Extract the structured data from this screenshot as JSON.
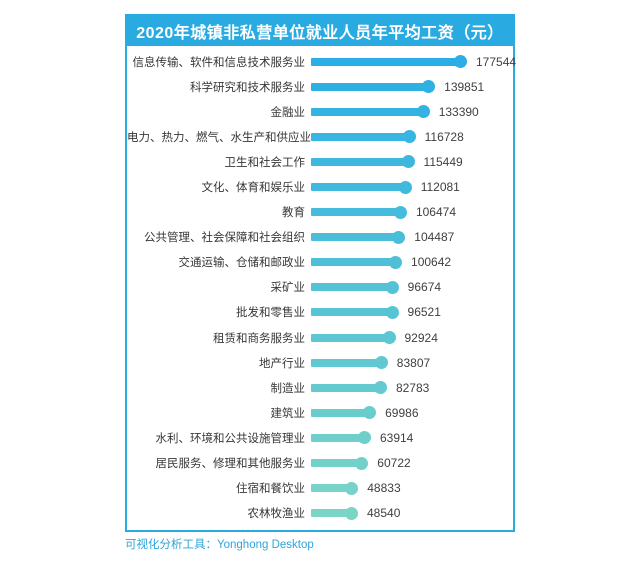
{
  "header": {
    "title": "2020年城镇非私营单位就业人员年平均工资（元）"
  },
  "chart_data": {
    "type": "bar",
    "orientation": "horizontal",
    "title": "2020年城镇非私营单位就业人员年平均工资（元）",
    "categories": [
      "信息传输、软件和信息技术服务业",
      "科学研究和技术服务业",
      "金融业",
      "电力、热力、燃气、水生产和供应业",
      "卫生和社会工作",
      "文化、体育和娱乐业",
      "教育",
      "公共管理、社会保障和社会组织",
      "交通运输、仓储和邮政业",
      "采矿业",
      "批发和零售业",
      "租赁和商务服务业",
      "地产行业",
      "制造业",
      "建筑业",
      "水利、环境和公共设施管理业",
      "居民服务、修理和其他服务业",
      "住宿和餐饮业",
      "农林牧渔业"
    ],
    "values": [
      177544,
      139851,
      133390,
      116728,
      115449,
      112081,
      106474,
      104487,
      100642,
      96674,
      96521,
      92924,
      83807,
      82783,
      69986,
      63914,
      60722,
      48833,
      48540
    ],
    "xlim": [
      0,
      177544
    ],
    "grid": false,
    "legend": "none",
    "value_labels": "end-of-bar",
    "bar_color_start": "#2BAEE5",
    "bar_color_end": "#7BD5C6"
  },
  "footer": {
    "credit": "可视化分析工具：Yonghong Desktop"
  },
  "colors": {
    "page_bg": "#FFFFFF",
    "header_bg": "#29ABE2",
    "card_border": "#29ABE2",
    "title_text": "#FFFFFF",
    "label_text": "#373737",
    "value_text": "#404040",
    "footer_text": "#2BA5DE"
  }
}
